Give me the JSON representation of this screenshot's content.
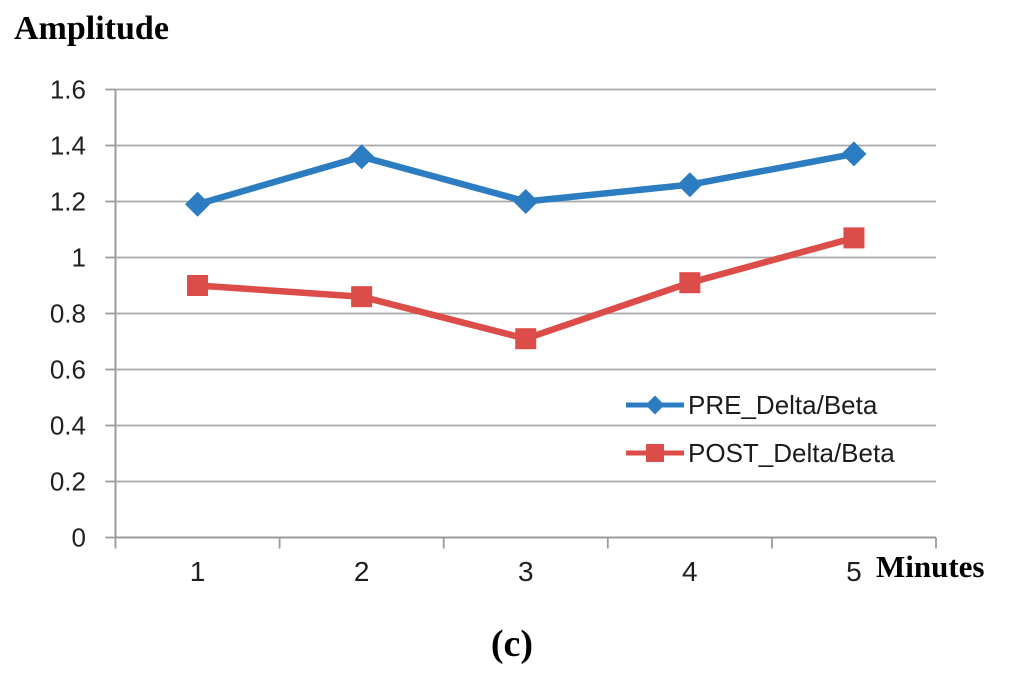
{
  "figure": {
    "y_axis_title": "Amplitude",
    "x_axis_title": "Minutes",
    "caption": "(c)"
  },
  "legend": {
    "items": [
      {
        "label": "PRE_Delta/Beta",
        "marker": "diamond"
      },
      {
        "label": "POST_Delta/Beta",
        "marker": "square"
      }
    ]
  },
  "chart_data": {
    "type": "line",
    "title": "",
    "xlabel": "Minutes",
    "ylabel": "Amplitude",
    "categories": [
      "1",
      "2",
      "3",
      "4",
      "5"
    ],
    "series": [
      {
        "name": "PRE_Delta/Beta",
        "marker": "diamond",
        "color": "#2B7CC0",
        "values": [
          1.19,
          1.36,
          1.2,
          1.26,
          1.37
        ]
      },
      {
        "name": "POST_Delta/Beta",
        "marker": "square",
        "color": "#DC4C48",
        "values": [
          0.9,
          0.86,
          0.71,
          0.91,
          1.07
        ]
      }
    ],
    "ylim": [
      0,
      1.6
    ],
    "ytick_step": 0.2,
    "ytick_labels": [
      "0",
      "0.2",
      "0.4",
      "0.6",
      "0.8",
      "1",
      "1.2",
      "1.4",
      "1.6"
    ],
    "grid": "horizontal",
    "legend_position": "inside-right",
    "gridline_color": "#A8A8A8",
    "axis_color": "#9B9B9B",
    "tick_label_color": "#1f1f1f"
  }
}
